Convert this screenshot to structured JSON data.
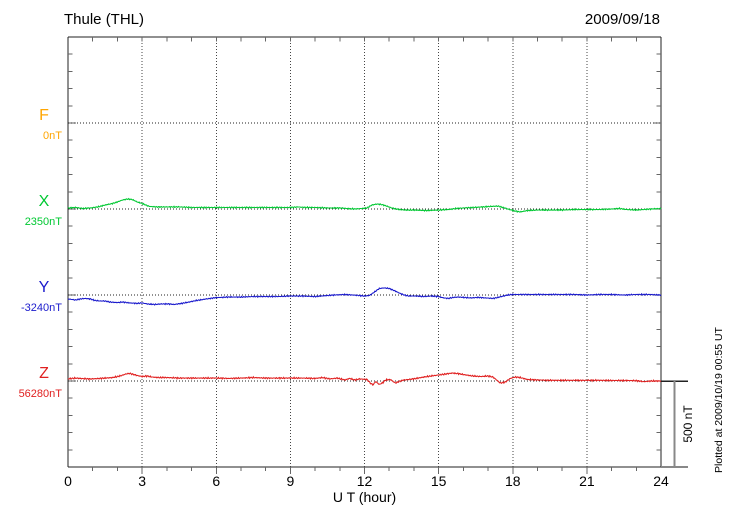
{
  "header": {
    "title": "Thule (THL)",
    "date": "2009/09/18"
  },
  "axis": {
    "xlabel": "U T (hour)",
    "x_ticks": [
      0,
      3,
      6,
      9,
      12,
      15,
      18,
      21,
      24
    ],
    "x_minor_step_hours": 1,
    "y_minor_step_nT": 100,
    "y_band_nT": 500
  },
  "scalebar": {
    "label": "500 nT",
    "span_nT": 500
  },
  "footnote": "Plotted at 2009/10/19 00:55 UT",
  "chart_data": {
    "type": "line",
    "title": "Thule (THL)",
    "date": "2009/09/18",
    "xlabel": "U T (hour)",
    "x_range_hours": [
      0,
      24
    ],
    "grid": "dotted vertical every 3h, dotted horizontal at each channel baseline",
    "channels": [
      {
        "id": "F",
        "label": "F",
        "value_label": "0nT",
        "baseline_nT": 0,
        "color": "#FFA500",
        "noise_nT": 0,
        "points": []
      },
      {
        "id": "X",
        "label": "X",
        "value_label": "2350nT",
        "baseline_nT": 2350,
        "color": "#00c832",
        "noise_nT": 4,
        "points": [
          [
            0,
            6
          ],
          [
            0.3,
            9
          ],
          [
            0.6,
            3
          ],
          [
            0.9,
            6
          ],
          [
            1.2,
            12
          ],
          [
            1.5,
            23
          ],
          [
            1.8,
            32
          ],
          [
            2.0,
            41
          ],
          [
            2.2,
            52
          ],
          [
            2.4,
            58
          ],
          [
            2.6,
            55
          ],
          [
            2.8,
            41
          ],
          [
            3.0,
            32
          ],
          [
            3.15,
            23
          ],
          [
            3.3,
            15
          ],
          [
            3.6,
            12
          ],
          [
            4,
            12
          ],
          [
            4.5,
            12
          ],
          [
            5,
            9
          ],
          [
            5.5,
            9
          ],
          [
            6,
            9
          ],
          [
            6.5,
            9
          ],
          [
            7,
            9
          ],
          [
            7.5,
            9
          ],
          [
            8,
            9
          ],
          [
            8.5,
            9
          ],
          [
            9,
            9
          ],
          [
            9.3,
            12
          ],
          [
            9.6,
            9
          ],
          [
            10,
            9
          ],
          [
            10.5,
            6
          ],
          [
            11,
            6
          ],
          [
            11.3,
            3
          ],
          [
            11.6,
            0
          ],
          [
            11.9,
            3
          ],
          [
            12.1,
            6
          ],
          [
            12.3,
            23
          ],
          [
            12.5,
            29
          ],
          [
            12.7,
            26
          ],
          [
            12.9,
            17
          ],
          [
            13.1,
            6
          ],
          [
            13.4,
            -3
          ],
          [
            13.7,
            -6
          ],
          [
            14,
            -6
          ],
          [
            14.5,
            -9
          ],
          [
            15,
            -6
          ],
          [
            15.4,
            -3
          ],
          [
            15.7,
            3
          ],
          [
            16,
            6
          ],
          [
            16.4,
            9
          ],
          [
            16.8,
            12
          ],
          [
            17.1,
            15
          ],
          [
            17.4,
            17
          ],
          [
            17.6,
            9
          ],
          [
            17.8,
            0
          ],
          [
            18.1,
            -12
          ],
          [
            18.3,
            -17
          ],
          [
            18.6,
            -9
          ],
          [
            19,
            -6
          ],
          [
            19.5,
            -6
          ],
          [
            20,
            -6
          ],
          [
            20.5,
            -3
          ],
          [
            21,
            -3
          ],
          [
            21.5,
            -3
          ],
          [
            22,
            0
          ],
          [
            22.3,
            3
          ],
          [
            22.6,
            -3
          ],
          [
            23,
            -6
          ],
          [
            23.3,
            -3
          ],
          [
            23.6,
            0
          ],
          [
            24,
            3
          ]
        ]
      },
      {
        "id": "Y",
        "label": "Y",
        "value_label": "-3240nT",
        "baseline_nT": -3240,
        "color": "#1a1acc",
        "noise_nT": 4,
        "points": [
          [
            0,
            -23
          ],
          [
            0.3,
            -29
          ],
          [
            0.5,
            -23
          ],
          [
            0.7,
            -20
          ],
          [
            0.9,
            -23
          ],
          [
            1.1,
            -32
          ],
          [
            1.3,
            -35
          ],
          [
            1.5,
            -35
          ],
          [
            1.7,
            -41
          ],
          [
            2.0,
            -44
          ],
          [
            2.2,
            -41
          ],
          [
            2.5,
            -46
          ],
          [
            2.8,
            -49
          ],
          [
            3.0,
            -46
          ],
          [
            3.2,
            -52
          ],
          [
            3.5,
            -55
          ],
          [
            3.8,
            -52
          ],
          [
            4.1,
            -52
          ],
          [
            4.3,
            -55
          ],
          [
            4.6,
            -49
          ],
          [
            4.9,
            -41
          ],
          [
            5.2,
            -32
          ],
          [
            5.6,
            -23
          ],
          [
            6.0,
            -15
          ],
          [
            6.5,
            -12
          ],
          [
            7,
            -12
          ],
          [
            7.5,
            -9
          ],
          [
            8,
            -9
          ],
          [
            8.5,
            -9
          ],
          [
            9,
            -6
          ],
          [
            9.5,
            -6
          ],
          [
            10,
            -9
          ],
          [
            10.5,
            -3
          ],
          [
            10.8,
            0
          ],
          [
            11.2,
            3
          ],
          [
            11.5,
            0
          ],
          [
            11.8,
            -3
          ],
          [
            12.0,
            -6
          ],
          [
            12.2,
            -3
          ],
          [
            12.4,
            17
          ],
          [
            12.6,
            38
          ],
          [
            12.8,
            41
          ],
          [
            13.0,
            38
          ],
          [
            13.2,
            26
          ],
          [
            13.4,
            12
          ],
          [
            13.6,
            0
          ],
          [
            13.8,
            -6
          ],
          [
            14.1,
            -6
          ],
          [
            14.4,
            -9
          ],
          [
            14.7,
            -6
          ],
          [
            15.0,
            -9
          ],
          [
            15.2,
            -17
          ],
          [
            15.4,
            -20
          ],
          [
            15.6,
            -14
          ],
          [
            15.8,
            -12
          ],
          [
            16.0,
            -14
          ],
          [
            16.3,
            -17
          ],
          [
            16.6,
            -14
          ],
          [
            16.9,
            -17
          ],
          [
            17.2,
            -20
          ],
          [
            17.4,
            -14
          ],
          [
            17.6,
            -7
          ],
          [
            17.8,
            0
          ],
          [
            18.0,
            3
          ],
          [
            18.5,
            3
          ],
          [
            19,
            3
          ],
          [
            19.5,
            3
          ],
          [
            20,
            3
          ],
          [
            20.5,
            3
          ],
          [
            21,
            0
          ],
          [
            21.5,
            3
          ],
          [
            22,
            3
          ],
          [
            22.5,
            0
          ],
          [
            23,
            3
          ],
          [
            23.5,
            3
          ],
          [
            24,
            0
          ]
        ]
      },
      {
        "id": "Z",
        "label": "Z",
        "value_label": "56280nT",
        "baseline_nT": 56280,
        "color": "#e02020",
        "noise_nT": 5,
        "points": [
          [
            0,
            12
          ],
          [
            0.3,
            17
          ],
          [
            0.6,
            14
          ],
          [
            0.9,
            12
          ],
          [
            1.2,
            14
          ],
          [
            1.5,
            17
          ],
          [
            1.8,
            20
          ],
          [
            2.1,
            29
          ],
          [
            2.35,
            41
          ],
          [
            2.5,
            44
          ],
          [
            2.65,
            38
          ],
          [
            2.8,
            32
          ],
          [
            3.0,
            26
          ],
          [
            3.2,
            29
          ],
          [
            3.4,
            23
          ],
          [
            3.7,
            20
          ],
          [
            4,
            20
          ],
          [
            4.5,
            17
          ],
          [
            5,
            17
          ],
          [
            5.5,
            17
          ],
          [
            6,
            17
          ],
          [
            6.5,
            15
          ],
          [
            7,
            17
          ],
          [
            7.5,
            20
          ],
          [
            8,
            17
          ],
          [
            8.5,
            17
          ],
          [
            9,
            17
          ],
          [
            9.5,
            17
          ],
          [
            10,
            15
          ],
          [
            10.3,
            20
          ],
          [
            10.6,
            12
          ],
          [
            10.9,
            17
          ],
          [
            11.2,
            6
          ],
          [
            11.4,
            15
          ],
          [
            11.6,
            6
          ],
          [
            11.8,
            12
          ],
          [
            12.1,
            9
          ],
          [
            12.25,
            -14
          ],
          [
            12.35,
            -23
          ],
          [
            12.45,
            -3
          ],
          [
            12.6,
            -20
          ],
          [
            12.75,
            -9
          ],
          [
            12.85,
            6
          ],
          [
            13.05,
            9
          ],
          [
            13.25,
            -12
          ],
          [
            13.45,
            0
          ],
          [
            13.6,
            6
          ],
          [
            13.8,
            9
          ],
          [
            14.1,
            15
          ],
          [
            14.4,
            23
          ],
          [
            14.7,
            29
          ],
          [
            15.0,
            35
          ],
          [
            15.3,
            41
          ],
          [
            15.55,
            46
          ],
          [
            15.8,
            43
          ],
          [
            16.1,
            35
          ],
          [
            16.4,
            29
          ],
          [
            16.7,
            26
          ],
          [
            17.0,
            29
          ],
          [
            17.2,
            23
          ],
          [
            17.5,
            -12
          ],
          [
            17.7,
            -6
          ],
          [
            17.9,
            15
          ],
          [
            18.1,
            23
          ],
          [
            18.3,
            20
          ],
          [
            18.6,
            9
          ],
          [
            19,
            6
          ],
          [
            19.5,
            4
          ],
          [
            20,
            4
          ],
          [
            20.5,
            4
          ],
          [
            21,
            4
          ],
          [
            21.5,
            4
          ],
          [
            22,
            3
          ],
          [
            22.5,
            3
          ],
          [
            23,
            2
          ],
          [
            23.3,
            -4
          ],
          [
            23.6,
            0
          ],
          [
            24,
            0
          ]
        ]
      }
    ]
  }
}
